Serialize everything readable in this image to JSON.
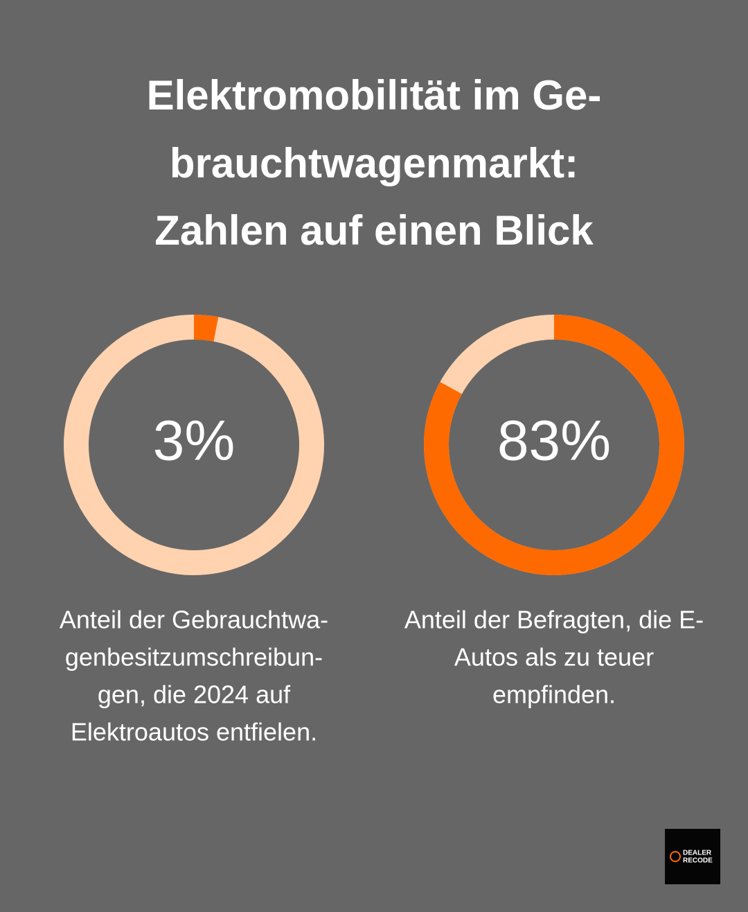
{
  "title": [
    "Elektromobilität im Ge-",
    "brauchtwagenmarkt:",
    "Zahlen auf einen Blick"
  ],
  "chart_data": [
    {
      "type": "donut",
      "values": [
        3
      ],
      "value_labels": [
        "3%"
      ],
      "color": "#ff6a00",
      "track_color": "#ffd3b0",
      "caption": [
        "Anteil der Gebrauchtwa-",
        "genbesitzumschreibun-",
        "gen, die 2024 auf",
        "Elektroautos entfielen."
      ]
    },
    {
      "type": "donut",
      "values": [
        83
      ],
      "value_labels": [
        "83%"
      ],
      "color": "#ff6a00",
      "track_color": "#ffd3b0",
      "caption": [
        "Anteil der Befragten, die E-",
        "Autos als zu teuer",
        "empfinden."
      ]
    }
  ],
  "logo": [
    "DEALER",
    "RECODE"
  ]
}
